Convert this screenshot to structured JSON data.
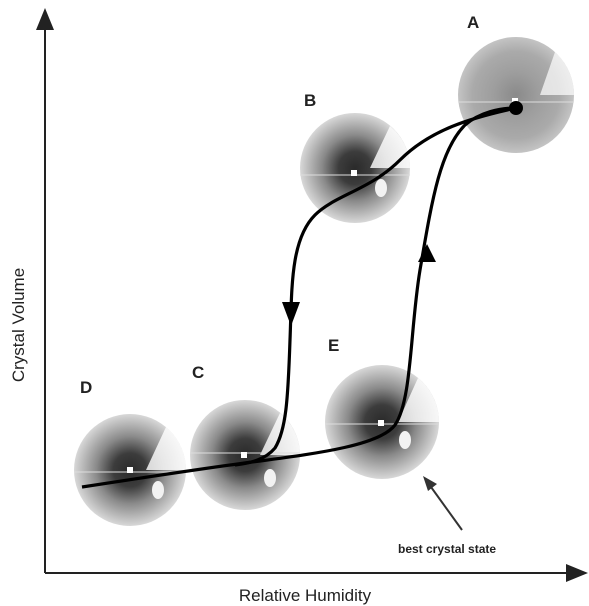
{
  "axes": {
    "x_label": "Relative Humidity",
    "y_label": "Crystal Volume"
  },
  "states": [
    {
      "label": "A"
    },
    {
      "label": "B"
    },
    {
      "label": "C"
    },
    {
      "label": "D"
    },
    {
      "label": "E"
    }
  ],
  "annotation": "best crystal state"
}
